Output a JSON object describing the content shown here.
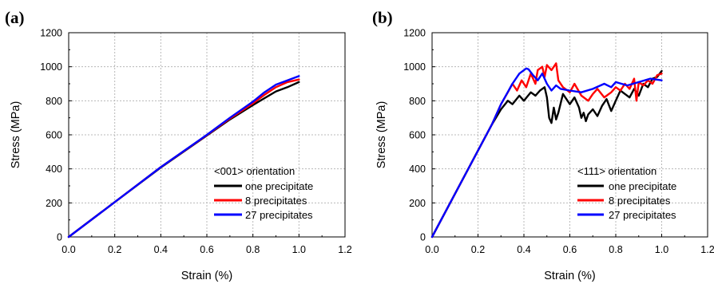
{
  "chart_data": [
    {
      "type": "line",
      "panel_label": "(a)",
      "xlabel": "Strain (%)",
      "ylabel": "Stress (MPa)",
      "xlim": [
        0,
        1.2
      ],
      "ylim": [
        0,
        1200
      ],
      "xticks": [
        "0.0",
        "0.2",
        "0.4",
        "0.6",
        "0.8",
        "1.0",
        "1.2"
      ],
      "yticks": [
        "0",
        "200",
        "400",
        "600",
        "800",
        "1000",
        "1200"
      ],
      "grid": true,
      "legend_title": "<001> orientation",
      "legend_position": "lower-right",
      "series": [
        {
          "name": "one precipitate",
          "color": "#000000",
          "x": [
            0.0,
            0.2,
            0.4,
            0.6,
            0.7,
            0.8,
            0.85,
            0.9,
            0.95,
            1.0
          ],
          "y": [
            0,
            205,
            408,
            596,
            690,
            775,
            815,
            855,
            880,
            910
          ]
        },
        {
          "name": "8 precipitates",
          "color": "#ff0000",
          "x": [
            0.0,
            0.2,
            0.4,
            0.6,
            0.7,
            0.8,
            0.85,
            0.9,
            0.95,
            1.0
          ],
          "y": [
            0,
            205,
            410,
            598,
            695,
            785,
            835,
            880,
            910,
            925
          ]
        },
        {
          "name": "27 precipitates",
          "color": "#0000ff",
          "x": [
            0.0,
            0.2,
            0.4,
            0.6,
            0.7,
            0.8,
            0.85,
            0.9,
            0.95,
            1.0
          ],
          "y": [
            0,
            205,
            410,
            600,
            700,
            795,
            850,
            895,
            920,
            945
          ]
        }
      ]
    },
    {
      "type": "line",
      "panel_label": "(b)",
      "xlabel": "Strain (%)",
      "ylabel": "Stress (MPa)",
      "xlim": [
        0,
        1.2
      ],
      "ylim": [
        0,
        1200
      ],
      "xticks": [
        "0.0",
        "0.2",
        "0.4",
        "0.6",
        "0.8",
        "1.0",
        "1.2"
      ],
      "yticks": [
        "0",
        "200",
        "400",
        "600",
        "800",
        "1000",
        "1200"
      ],
      "grid": true,
      "legend_title": "<111> orientation",
      "legend_position": "lower-right",
      "series": [
        {
          "name": "one precipitate",
          "color": "#000000",
          "x": [
            0.0,
            0.26,
            0.3,
            0.33,
            0.35,
            0.38,
            0.4,
            0.43,
            0.45,
            0.47,
            0.49,
            0.5,
            0.51,
            0.52,
            0.53,
            0.54,
            0.55,
            0.57,
            0.6,
            0.62,
            0.64,
            0.65,
            0.66,
            0.67,
            0.68,
            0.7,
            0.72,
            0.74,
            0.76,
            0.78,
            0.8,
            0.82,
            0.84,
            0.86,
            0.88,
            0.9,
            0.92,
            0.94,
            0.96,
            0.98,
            1.0
          ],
          "y": [
            0,
            660,
            750,
            800,
            780,
            830,
            800,
            850,
            830,
            860,
            880,
            820,
            700,
            670,
            760,
            690,
            730,
            840,
            780,
            820,
            760,
            700,
            730,
            680,
            720,
            750,
            710,
            770,
            810,
            740,
            800,
            860,
            840,
            820,
            870,
            830,
            900,
            880,
            930,
            940,
            975
          ]
        },
        {
          "name": "8 precipitates",
          "color": "#ff0000",
          "x": [
            0.0,
            0.26,
            0.3,
            0.33,
            0.35,
            0.37,
            0.39,
            0.41,
            0.43,
            0.45,
            0.46,
            0.48,
            0.49,
            0.5,
            0.52,
            0.54,
            0.55,
            0.57,
            0.6,
            0.62,
            0.65,
            0.68,
            0.7,
            0.72,
            0.75,
            0.78,
            0.8,
            0.82,
            0.84,
            0.86,
            0.88,
            0.89,
            0.9,
            0.92,
            0.94,
            0.96,
            0.98,
            1.0
          ],
          "y": [
            0,
            660,
            780,
            850,
            900,
            860,
            920,
            880,
            960,
            900,
            980,
            1000,
            940,
            1010,
            980,
            1020,
            920,
            880,
            850,
            900,
            830,
            800,
            840,
            870,
            820,
            850,
            880,
            860,
            900,
            870,
            930,
            800,
            910,
            890,
            920,
            900,
            950,
            960
          ]
        },
        {
          "name": "27 precipitates",
          "color": "#0000ff",
          "x": [
            0.0,
            0.26,
            0.3,
            0.35,
            0.38,
            0.41,
            0.42,
            0.44,
            0.46,
            0.48,
            0.5,
            0.52,
            0.54,
            0.56,
            0.6,
            0.65,
            0.7,
            0.75,
            0.78,
            0.8,
            0.85,
            0.9,
            0.95,
            1.0
          ],
          "y": [
            0,
            660,
            780,
            900,
            960,
            990,
            985,
            950,
            920,
            960,
            900,
            860,
            890,
            870,
            860,
            850,
            870,
            900,
            880,
            910,
            890,
            910,
            930,
            920
          ]
        }
      ]
    }
  ]
}
